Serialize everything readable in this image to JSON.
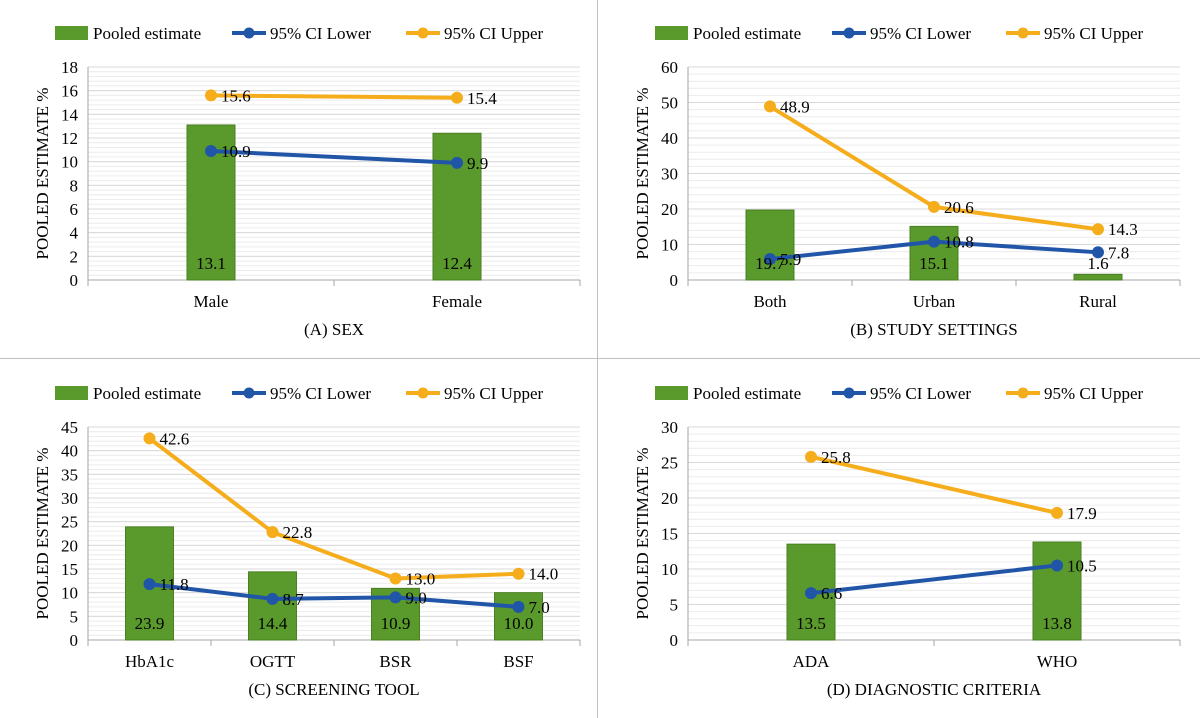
{
  "colors": {
    "pooled": "#5a9a2c",
    "pooled_dark": "#4a7f22",
    "lower": "#2155a8",
    "upper": "#f5ad1c",
    "grid": "#d9d9d9",
    "axis": "#a6a6a6"
  },
  "legend": {
    "pooled": "Pooled estimate",
    "lower": "95% CI Lower",
    "upper": "95% CI Upper"
  },
  "chart_data": [
    {
      "type": "bar",
      "title": "(A) SEX",
      "xlabel": "",
      "ylabel": "POOLED ESTIMATE %",
      "categories": [
        "Male",
        "Female"
      ],
      "ylim": [
        0,
        18
      ],
      "yticks": [
        0,
        2,
        4,
        6,
        8,
        10,
        12,
        14,
        16,
        18
      ],
      "series": [
        {
          "name": "Pooled estimate",
          "kind": "bar",
          "values": [
            13.1,
            12.4
          ],
          "labels": [
            "13.1",
            "12.4"
          ]
        },
        {
          "name": "95% CI Lower",
          "kind": "line",
          "values": [
            10.9,
            9.9
          ],
          "labels": [
            "10.9",
            "9.9"
          ]
        },
        {
          "name": "95% CI Upper",
          "kind": "line",
          "values": [
            15.6,
            15.4
          ],
          "labels": [
            "15.6",
            "15.4"
          ]
        }
      ]
    },
    {
      "type": "bar",
      "title": "(B) STUDY SETTINGS",
      "xlabel": "",
      "ylabel": "POOLED ESTIMATE %",
      "categories": [
        "Both",
        "Urban",
        "Rural"
      ],
      "ylim": [
        0,
        60
      ],
      "yticks": [
        0,
        10,
        20,
        30,
        40,
        50,
        60
      ],
      "series": [
        {
          "name": "Pooled estimate",
          "kind": "bar",
          "values": [
            19.7,
            15.1,
            1.6
          ],
          "labels": [
            "19.7",
            "15.1",
            "1.6"
          ]
        },
        {
          "name": "95% CI Lower",
          "kind": "line",
          "values": [
            5.9,
            10.8,
            7.8
          ],
          "labels": [
            "5.9",
            "10.8",
            "7.8"
          ]
        },
        {
          "name": "95% CI Upper",
          "kind": "line",
          "values": [
            48.9,
            20.6,
            14.3
          ],
          "labels": [
            "48.9",
            "20.6",
            "14.3"
          ]
        }
      ]
    },
    {
      "type": "bar",
      "title": "(C) SCREENING TOOL",
      "xlabel": "",
      "ylabel": "POOLED ESTIMATE %",
      "categories": [
        "HbA1c",
        "OGTT",
        "BSR",
        "BSF"
      ],
      "ylim": [
        0,
        45
      ],
      "yticks": [
        0,
        5,
        10,
        15,
        20,
        25,
        30,
        35,
        40,
        45
      ],
      "series": [
        {
          "name": "Pooled estimate",
          "kind": "bar",
          "values": [
            23.9,
            14.4,
            10.9,
            10.0
          ],
          "labels": [
            "23.9",
            "14.4",
            "10.9",
            "10.0"
          ]
        },
        {
          "name": "95% CI Lower",
          "kind": "line",
          "values": [
            11.8,
            8.7,
            9.0,
            7.0
          ],
          "labels": [
            "11.8",
            "8.7",
            "9.0",
            "7.0"
          ]
        },
        {
          "name": "95% CI Upper",
          "kind": "line",
          "values": [
            42.6,
            22.8,
            13.0,
            14.0
          ],
          "labels": [
            "42.6",
            "22.8",
            "13.0",
            "14.0"
          ]
        }
      ]
    },
    {
      "type": "bar",
      "title": "(D) DIAGNOSTIC CRITERIA",
      "xlabel": "",
      "ylabel": "POOLED ESTIMATE %",
      "categories": [
        "ADA",
        "WHO"
      ],
      "ylim": [
        0,
        30
      ],
      "yticks": [
        0,
        5,
        10,
        15,
        20,
        25,
        30
      ],
      "series": [
        {
          "name": "Pooled estimate",
          "kind": "bar",
          "values": [
            13.5,
            13.8
          ],
          "labels": [
            "13.5",
            "13.8"
          ]
        },
        {
          "name": "95% CI Lower",
          "kind": "line",
          "values": [
            6.6,
            10.5
          ],
          "labels": [
            "6.6",
            "10.5"
          ]
        },
        {
          "name": "95% CI Upper",
          "kind": "line",
          "values": [
            25.8,
            17.9
          ],
          "labels": [
            "25.8",
            "17.9"
          ]
        }
      ]
    }
  ]
}
